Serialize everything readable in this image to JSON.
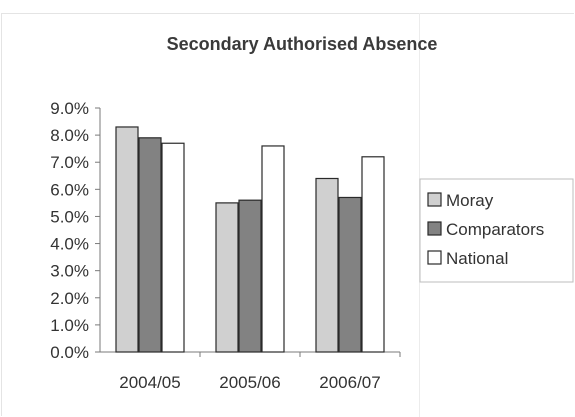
{
  "chart_data": {
    "type": "bar",
    "title": "Secondary Authorised Absence",
    "categories": [
      "2004/05",
      "2005/06",
      "2006/07"
    ],
    "series": [
      {
        "name": "Moray",
        "values": [
          8.3,
          5.5,
          6.4
        ],
        "color": "#d0d0d0"
      },
      {
        "name": "Comparators",
        "values": [
          7.9,
          5.6,
          5.7
        ],
        "color": "#828282"
      },
      {
        "name": "National",
        "values": [
          7.7,
          7.6,
          7.2
        ],
        "color": "#ffffff"
      }
    ],
    "y_ticks": [
      "0.0%",
      "1.0%",
      "2.0%",
      "3.0%",
      "4.0%",
      "5.0%",
      "6.0%",
      "7.0%",
      "8.0%",
      "9.0%"
    ],
    "ylim": [
      0,
      9
    ],
    "unit": "%",
    "grid": false,
    "legend_position": "right"
  }
}
